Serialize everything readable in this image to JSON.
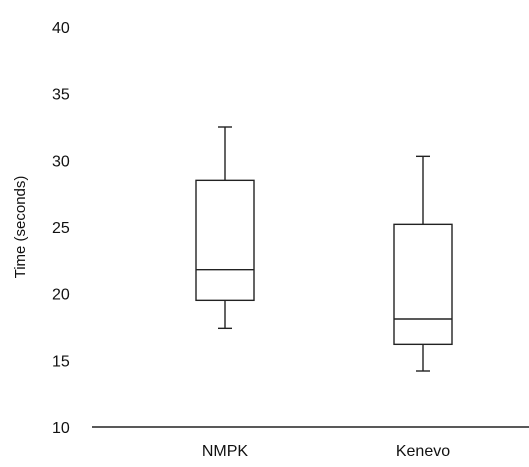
{
  "chart_data": {
    "type": "box",
    "ylabel": "Time (seconds)",
    "xlabel": "",
    "ylim": [
      10,
      40
    ],
    "y_ticks": [
      10,
      15,
      20,
      25,
      30,
      35,
      40
    ],
    "y_tick_labels": [
      "10",
      "15",
      "20",
      "25",
      "30",
      "35",
      "40"
    ],
    "categories": [
      "NMPK",
      "Kenevo"
    ],
    "boxes": [
      {
        "category": "NMPK",
        "min": 17.4,
        "q1": 19.5,
        "median": 21.8,
        "q3": 28.5,
        "max": 32.5
      },
      {
        "category": "Kenevo",
        "min": 14.2,
        "q1": 16.2,
        "median": 18.1,
        "q3": 25.2,
        "max": 30.3
      }
    ],
    "grid": false,
    "colors": {
      "stroke": "#222222",
      "fill": "#ffffff"
    }
  }
}
